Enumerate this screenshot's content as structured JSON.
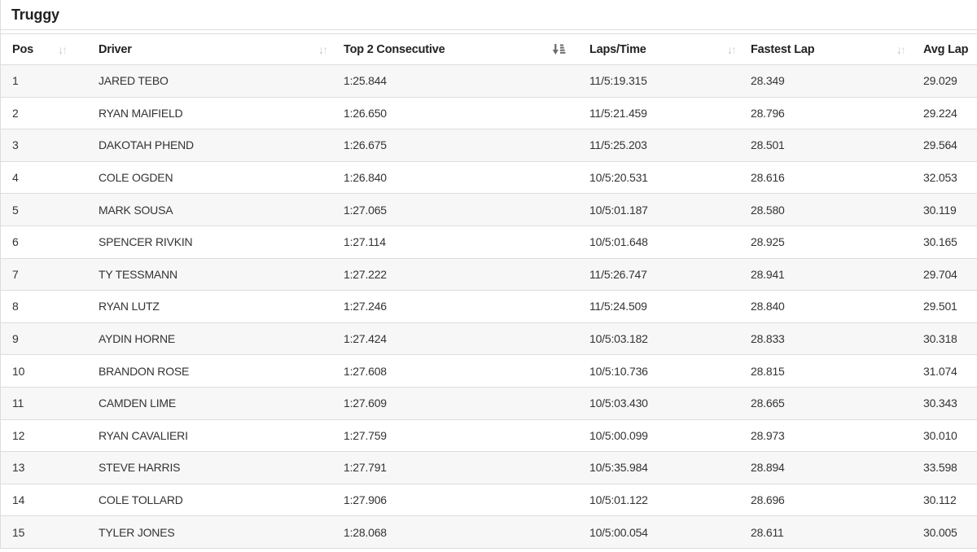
{
  "page": {
    "title": "Truggy"
  },
  "table": {
    "columns": [
      {
        "key": "pos",
        "label": "Pos",
        "sort": "inactive"
      },
      {
        "key": "driver",
        "label": "Driver",
        "sort": "inactive"
      },
      {
        "key": "top2",
        "label": "Top 2 Consecutive",
        "sort": "active-asc"
      },
      {
        "key": "laps_time",
        "label": "Laps/Time",
        "sort": "inactive"
      },
      {
        "key": "fastest_lap",
        "label": "Fastest Lap",
        "sort": "inactive"
      },
      {
        "key": "avg_lap",
        "label": "Avg Lap",
        "sort": "none"
      }
    ],
    "rows": [
      [
        "1",
        "JARED TEBO",
        "1:25.844",
        "11/5:19.315",
        "28.349",
        "29.029"
      ],
      [
        "2",
        "RYAN MAIFIELD",
        "1:26.650",
        "11/5:21.459",
        "28.796",
        "29.224"
      ],
      [
        "3",
        "DAKOTAH PHEND",
        "1:26.675",
        "11/5:25.203",
        "28.501",
        "29.564"
      ],
      [
        "4",
        "COLE OGDEN",
        "1:26.840",
        "10/5:20.531",
        "28.616",
        "32.053"
      ],
      [
        "5",
        "MARK SOUSA",
        "1:27.065",
        "10/5:01.187",
        "28.580",
        "30.119"
      ],
      [
        "6",
        "SPENCER RIVKIN",
        "1:27.114",
        "10/5:01.648",
        "28.925",
        "30.165"
      ],
      [
        "7",
        "TY TESSMANN",
        "1:27.222",
        "11/5:26.747",
        "28.941",
        "29.704"
      ],
      [
        "8",
        "RYAN LUTZ",
        "1:27.246",
        "11/5:24.509",
        "28.840",
        "29.501"
      ],
      [
        "9",
        "AYDIN HORNE",
        "1:27.424",
        "10/5:03.182",
        "28.833",
        "30.318"
      ],
      [
        "10",
        "BRANDON ROSE",
        "1:27.608",
        "10/5:10.736",
        "28.815",
        "31.074"
      ],
      [
        "11",
        "CAMDEN LIME",
        "1:27.609",
        "10/5:03.430",
        "28.665",
        "30.343"
      ],
      [
        "12",
        "RYAN CAVALIERI",
        "1:27.759",
        "10/5:00.099",
        "28.973",
        "30.010"
      ],
      [
        "13",
        "STEVE HARRIS",
        "1:27.791",
        "10/5:35.984",
        "28.894",
        "33.598"
      ],
      [
        "14",
        "COLE TOLLARD",
        "1:27.906",
        "10/5:01.122",
        "28.696",
        "30.112"
      ],
      [
        "15",
        "TYLER JONES",
        "1:28.068",
        "10/5:00.054",
        "28.611",
        "30.005"
      ]
    ],
    "icons": {
      "inactive_sort": "sort-arrows-icon",
      "active_sort": "sort-amount-asc-icon"
    },
    "colors": {
      "border": "#dddddd",
      "stripe": "#f7f7f7",
      "header_text": "#222222",
      "cell_text": "#333333",
      "inactive_sort_icon": "#c4c4c4",
      "active_sort_icon": "#6b6b6b"
    }
  }
}
